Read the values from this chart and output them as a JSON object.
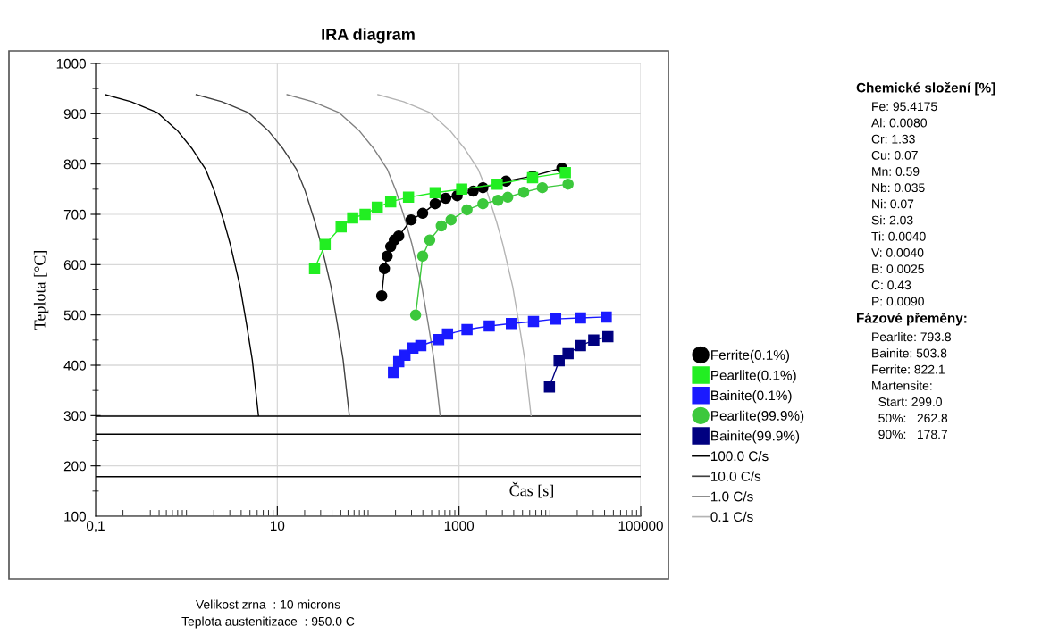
{
  "chart_data": {
    "type": "line",
    "title": "IRA diagram",
    "xlabel": "Čas [s]",
    "ylabel": "Teplota [°C]",
    "log": "x",
    "xlim": [
      0.1,
      100000
    ],
    "xticks": [
      {
        "value": 0.1,
        "label": "0,1"
      },
      10,
      1000,
      100000
    ],
    "ylim": [
      100,
      1000
    ],
    "yticks": [
      100,
      200,
      300,
      400,
      500,
      600,
      700,
      800,
      900,
      1000
    ],
    "grid": true,
    "legend": "right",
    "series": [
      {
        "name": "Ferrite(0.1%)",
        "color": "#000000",
        "marker": "circle",
        "x": [
          141,
          151,
          162,
          177,
          194,
          217,
          297,
          398,
          546,
          714,
          955,
          1432,
          1833,
          3290,
          6450,
          13550
        ],
        "values": [
          538,
          592,
          617,
          636,
          649,
          657,
          689,
          702,
          721,
          732,
          737,
          746,
          753,
          766,
          776,
          792
        ]
      },
      {
        "name": "Pearlite(0.1%)",
        "color": "#22ee22",
        "marker": "square",
        "x": [
          25.7,
          33.6,
          50.4,
          67.5,
          92.5,
          126,
          177,
          278,
          546,
          1070,
          2630,
          6450,
          14800
        ],
        "values": [
          592,
          640,
          675,
          693,
          700,
          714,
          725,
          734,
          743,
          750,
          760,
          773,
          783
        ]
      },
      {
        "name": "Bainite(0.1%)",
        "color": "#1a1aff",
        "marker": "square",
        "x": [
          190,
          217,
          254,
          311,
          380,
          597,
          747,
          1224,
          2150,
          3770,
          6600,
          11570,
          21700,
          41700
        ],
        "values": [
          386,
          407,
          420,
          434,
          439,
          451,
          462,
          471,
          478,
          483,
          487,
          492,
          494,
          496
        ]
      },
      {
        "name": "Pearlite(99.9%)",
        "color": "#3cc83c",
        "marker": "circle",
        "x": [
          333,
          398,
          476,
          638,
          817,
          1224,
          1833,
          2685,
          3440,
          5150,
          8260,
          15850
        ],
        "values": [
          500,
          617,
          649,
          677,
          689,
          709,
          721,
          728,
          734,
          744,
          753,
          760
        ]
      },
      {
        "name": "Bainite(99.9%)",
        "color": "#000080",
        "marker": "square",
        "x": [
          9890,
          12650,
          15850,
          21700,
          30400,
          43500
        ],
        "values": [
          357,
          409,
          423,
          439,
          450,
          457
        ]
      },
      {
        "name": "100.0 C/s",
        "color": "#000000",
        "marker": "none",
        "x": [
          0.128,
          0.245,
          0.48,
          0.79,
          1.16,
          1.62,
          2.03,
          2.6,
          3.04,
          3.9,
          4.6,
          5.3,
          6.2
        ],
        "values": [
          938,
          924,
          902,
          867,
          830,
          790,
          746,
          684,
          640,
          556,
          480,
          411,
          300
        ]
      },
      {
        "name": "10.0 C/s",
        "color": "#404040",
        "marker": "none",
        "x": [
          1.28,
          2.45,
          4.8,
          7.9,
          11.6,
          16.2,
          20.3,
          26,
          30.4,
          39,
          46,
          53,
          62
        ],
        "values": [
          938,
          924,
          902,
          867,
          830,
          790,
          746,
          684,
          640,
          556,
          480,
          411,
          300
        ]
      },
      {
        "name": "1.0 C/s",
        "color": "#808080",
        "marker": "none",
        "x": [
          12.8,
          24.5,
          48,
          79,
          116,
          162,
          203,
          260,
          304,
          390,
          460,
          530,
          620
        ],
        "values": [
          938,
          924,
          902,
          867,
          830,
          790,
          746,
          684,
          640,
          556,
          480,
          411,
          300
        ]
      },
      {
        "name": "0.1 C/s",
        "color": "#b4b4b4",
        "marker": "none",
        "x": [
          128,
          245,
          480,
          790,
          1160,
          1620,
          2030,
          2600,
          3040,
          3900,
          4600,
          5300,
          6200
        ],
        "values": [
          938,
          924,
          902,
          867,
          830,
          790,
          746,
          684,
          640,
          556,
          480,
          411,
          300
        ]
      }
    ],
    "ref_lines": [
      {
        "axis": "y",
        "value": 299.0,
        "color": "#000000"
      },
      {
        "axis": "y",
        "value": 262.8,
        "color": "#000000"
      },
      {
        "axis": "y",
        "value": 178.7,
        "color": "#000000"
      }
    ],
    "annotations": [
      "Velikost zrna  : 10 microns",
      "Teplota austenitizace  : 950.0 C",
      "Chemické složení [%]",
      "Fe: 95.4175\nAl: 0.0080\nCr: 1.33\nCu: 0.07\nMn: 0.59\nNb: 0.035\nNi: 0.07\nSi: 2.03\nTi: 0.0040\nV: 0.0040\nB: 0.0025\nC: 0.43\nP: 0.0090",
      "Fázové přeměny:",
      "Pearlite: 793.8\nBainite: 503.8\nFerrite: 822.1\nMartensite:\n  Start: 299.0\n  50%:   262.8\n  90%:   178.7"
    ]
  }
}
